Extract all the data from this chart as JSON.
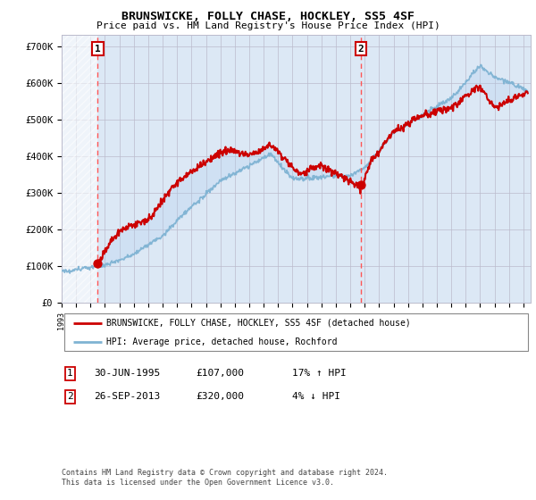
{
  "title": "BRUNSWICKE, FOLLY CHASE, HOCKLEY, SS5 4SF",
  "subtitle": "Price paid vs. HM Land Registry's House Price Index (HPI)",
  "legend_line1": "BRUNSWICKE, FOLLY CHASE, HOCKLEY, SS5 4SF (detached house)",
  "legend_line2": "HPI: Average price, detached house, Rochford",
  "annotation1": {
    "num": "1",
    "date": "30-JUN-1995",
    "price": "£107,000",
    "pct": "17% ↑ HPI"
  },
  "annotation2": {
    "num": "2",
    "date": "26-SEP-2013",
    "price": "£320,000",
    "pct": "4% ↓ HPI"
  },
  "footer": "Contains HM Land Registry data © Crown copyright and database right 2024.\nThis data is licensed under the Open Government Licence v3.0.",
  "ylim": [
    0,
    730000
  ],
  "xlim": [
    1993,
    2025.5
  ],
  "sale1_x": 1995.5,
  "sale1_y": 107000,
  "sale2_x": 2013.75,
  "sale2_y": 320000,
  "red_line_color": "#cc0000",
  "blue_line_color": "#7fb3d3",
  "dashed_line_color": "#ff5555",
  "background_plot": "#dce8f5",
  "grid_color": "#bbbbcc"
}
